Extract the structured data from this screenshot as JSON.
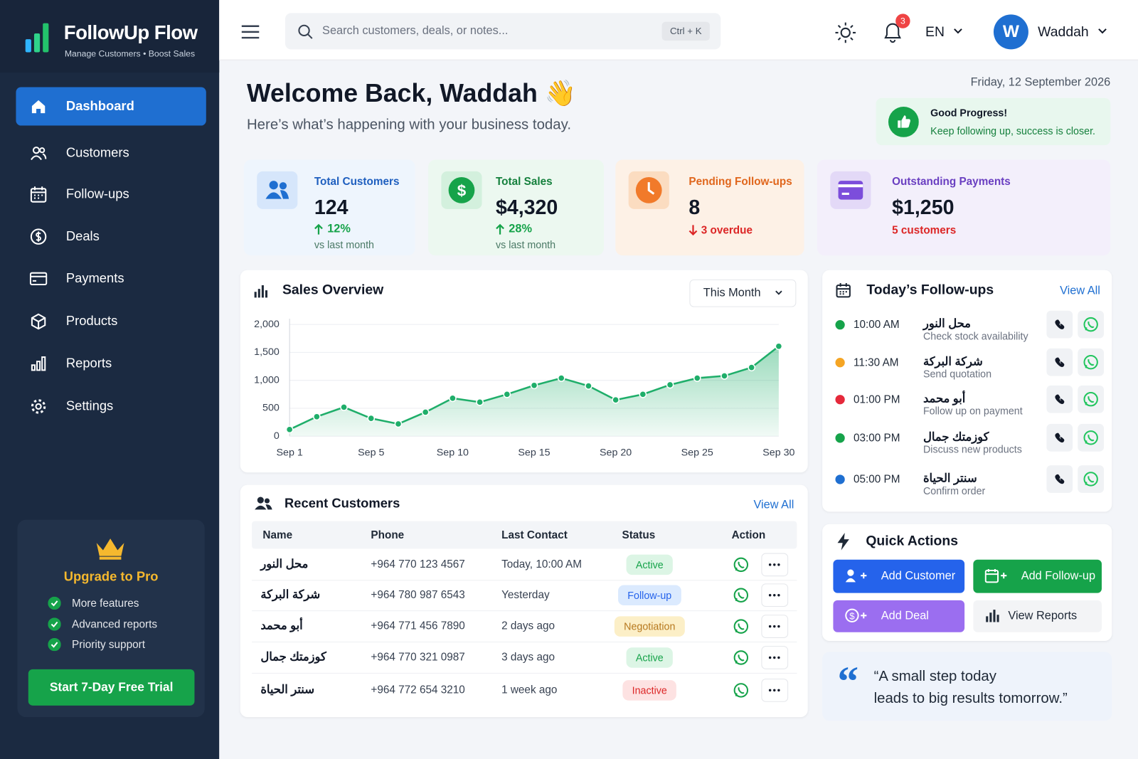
{
  "sidebar": {
    "brand": "FollowUp Flow",
    "tagline": "Manage Customers • Boost Sales",
    "nav": [
      "Dashboard",
      "Customers",
      "Follow-ups",
      "Deals",
      "Payments",
      "Products",
      "Reports",
      "Settings"
    ],
    "upgrade": {
      "title": "Upgrade to Pro",
      "features": [
        "More features",
        "Advanced reports",
        "Priority support"
      ],
      "button": "Start 7-Day Free Trial"
    }
  },
  "header": {
    "search": "Search customers, deals, or notes...",
    "shortcut": "Ctrl + K",
    "notifications": 3,
    "language": "EN",
    "avatar": "W",
    "user": "Waddah"
  },
  "welcome": {
    "title": "Welcome Back, Waddah 👋",
    "subtitle": "Here’s what’s happening with your business today.",
    "date": "Friday, 12 September 2026",
    "banner": {
      "title": "Good Progress!",
      "text": "Keep following up, success is closer."
    }
  },
  "stats": [
    {
      "label": "Total Customers",
      "value": "124",
      "change": "12%",
      "note": "vs last month"
    },
    {
      "label": "Total Sales",
      "value": "$4,320",
      "change": "28%",
      "note": "vs last month"
    },
    {
      "label": "Pending Follow-ups",
      "value": "8",
      "note": "3 overdue"
    },
    {
      "label": "Outstanding Payments",
      "value": "$1,250",
      "note": "5 customers"
    }
  ],
  "chart_data": {
    "type": "area",
    "title": "Sales Overview",
    "period": "This Month",
    "color": "#1fae6a",
    "grid": true,
    "categories": [
      "Sep 1",
      null,
      null,
      "Sep 5",
      null,
      null,
      "Sep 10",
      null,
      null,
      "Sep 15",
      null,
      null,
      "Sep 20",
      null,
      null,
      "Sep 25",
      null,
      null,
      "Sep 30"
    ],
    "values": [
      120,
      350,
      520,
      320,
      220,
      430,
      680,
      610,
      750,
      910,
      1040,
      900,
      650,
      750,
      920,
      1040,
      1080,
      1230,
      1610
    ],
    "ylim": [
      0,
      2000
    ],
    "yticks": [
      0,
      500,
      {
        "value": 1000,
        "label": "1,000"
      },
      {
        "value": 1500,
        "label": "1,500"
      },
      {
        "value": 2000,
        "label": "2,000"
      }
    ]
  },
  "followups": {
    "title": "Today’s Follow-ups",
    "view_all": "View All",
    "items": [
      {
        "time": "10:00 AM",
        "name": "محل النور",
        "task": "Check stock availability",
        "color": "#16a34a"
      },
      {
        "time": "11:30 AM",
        "name": "شركة البركة",
        "task": "Send quotation",
        "color": "#f5a524"
      },
      {
        "time": "01:00 PM",
        "name": "أبو محمد",
        "task": "Follow up on payment",
        "color": "#e5293b"
      },
      {
        "time": "03:00 PM",
        "name": "كوزمتك جمال",
        "task": "Discuss new products",
        "color": "#16a34a"
      },
      {
        "time": "05:00 PM",
        "name": "سنتر الحياة",
        "task": "Confirm order",
        "color": "#1f6fd1"
      }
    ]
  },
  "customers": {
    "title": "Recent Customers",
    "view_all": "View All",
    "columns": [
      "Name",
      "Phone",
      "Last Contact",
      "Status",
      "Action"
    ],
    "rows": [
      {
        "name": "محل النور",
        "phone": "+964 770 123 4567",
        "last_contact": "Today, 10:00 AM",
        "status": "Active",
        "status_color": "#16a34a",
        "status_bg": "#dcf5e5"
      },
      {
        "name": "شركة البركة",
        "phone": "+964 780 987 6543",
        "last_contact": "Yesterday",
        "status": "Follow-up",
        "status_color": "#2563eb",
        "status_bg": "#dbeafe"
      },
      {
        "name": "أبو محمد",
        "phone": "+964 771 456 7890",
        "last_contact": "2 days ago",
        "status": "Negotiation",
        "status_color": "#b7791f",
        "status_bg": "#fcefc7"
      },
      {
        "name": "كوزمتك جمال",
        "phone": "+964 770 321 0987",
        "last_contact": "3 days ago",
        "status": "Active",
        "status_color": "#16a34a",
        "status_bg": "#dcf5e5"
      },
      {
        "name": "سنتر الحياة",
        "phone": "+964 772 654 3210",
        "last_contact": "1 week ago",
        "status": "Inactive",
        "status_color": "#dc2626",
        "status_bg": "#fde2e2"
      }
    ]
  },
  "quick_actions": {
    "title": "Quick Actions",
    "buttons": [
      {
        "label": "Add Customer",
        "color": "#2563eb",
        "text_color": "#ffffff"
      },
      {
        "label": "Add Follow-up",
        "color": "#16a34a",
        "text_color": "#ffffff"
      },
      {
        "label": "Add Deal",
        "color": "#9b6ef0",
        "text_color": "#ffffff"
      },
      {
        "label": "View Reports",
        "color": "#f3f4f6",
        "text_color": "#1f2937"
      }
    ]
  },
  "quote": [
    "“A small step today",
    "leads to big results tomorrow.”"
  ]
}
